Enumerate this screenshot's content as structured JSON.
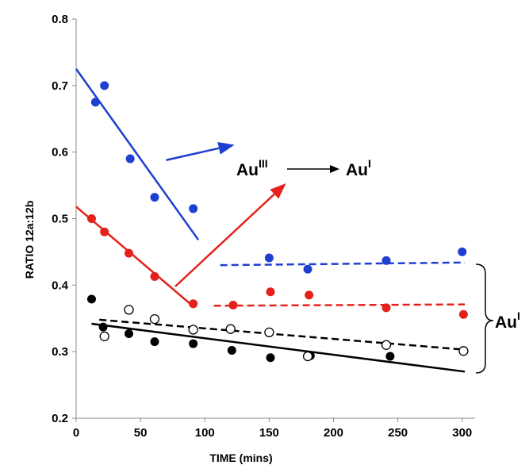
{
  "chart_data": {
    "type": "scatter",
    "title": "",
    "xlabel": "TIME (mins)",
    "ylabel": "RATIO 12a:12b",
    "xlim": [
      0,
      310
    ],
    "ylim": [
      0.2,
      0.8
    ],
    "xticks": [
      0,
      50,
      100,
      150,
      200,
      250,
      300
    ],
    "yticks": [
      0.2,
      0.3,
      0.4,
      0.5,
      0.6,
      0.7,
      0.8
    ],
    "grid": false,
    "legend": "none",
    "series": [
      {
        "color": "#1f3fd1",
        "marker": "filled",
        "points": [
          [
            15,
            0.675
          ],
          [
            22,
            0.7
          ],
          [
            42,
            0.59
          ],
          [
            61,
            0.532
          ],
          [
            91,
            0.515
          ],
          [
            150,
            0.441
          ],
          [
            180,
            0.424
          ],
          [
            241,
            0.437
          ],
          [
            300,
            0.45
          ]
        ],
        "fits": [
          {
            "style": "solid",
            "from": [
              0,
              0.725
            ],
            "to": [
              95,
              0.468
            ]
          },
          {
            "style": "dashed",
            "from": [
              112,
              0.43
            ],
            "to": [
              302,
              0.434
            ]
          }
        ]
      },
      {
        "color": "#e5211b",
        "marker": "filled",
        "points": [
          [
            12,
            0.5
          ],
          [
            22,
            0.48
          ],
          [
            41,
            0.448
          ],
          [
            61,
            0.413
          ],
          [
            91,
            0.372
          ],
          [
            122,
            0.37
          ],
          [
            151,
            0.39
          ],
          [
            181,
            0.385
          ],
          [
            241,
            0.366
          ],
          [
            301,
            0.356
          ]
        ],
        "fits": [
          {
            "style": "solid",
            "from": [
              0,
              0.518
            ],
            "to": [
              91,
              0.368
            ]
          },
          {
            "style": "dashed",
            "from": [
              107,
              0.369
            ],
            "to": [
              302,
              0.371
            ]
          }
        ]
      },
      {
        "color": "#000000",
        "marker": "filled",
        "points": [
          [
            12,
            0.379
          ],
          [
            21,
            0.337
          ],
          [
            41,
            0.327
          ],
          [
            61,
            0.315
          ],
          [
            91,
            0.312
          ],
          [
            121,
            0.302
          ],
          [
            151,
            0.291
          ],
          [
            182,
            0.294
          ],
          [
            244,
            0.293
          ]
        ],
        "fits": [
          {
            "style": "solid",
            "from": [
              12,
              0.342
            ],
            "to": [
              302,
              0.27
            ]
          }
        ]
      },
      {
        "color": "#000000",
        "marker": "open",
        "points": [
          [
            22,
            0.323
          ],
          [
            41,
            0.363
          ],
          [
            61,
            0.349
          ],
          [
            91,
            0.333
          ],
          [
            120,
            0.334
          ],
          [
            150,
            0.329
          ],
          [
            180,
            0.293
          ],
          [
            241,
            0.31
          ],
          [
            301,
            0.301
          ]
        ],
        "fits": [
          {
            "style": "dashed",
            "from": [
              18,
              0.348
            ],
            "to": [
              302,
              0.303
            ]
          }
        ]
      }
    ],
    "annotations": {
      "reaction": {
        "from_base": "Au",
        "from_sup": "III",
        "to_base": "Au",
        "to_sup": "I"
      },
      "bracket": {
        "base": "Au",
        "sup": "I"
      },
      "arrows": [
        {
          "color": "#1f3fd1",
          "from": [
            70,
            0.588
          ],
          "to": [
            123,
            0.611
          ]
        },
        {
          "color": "#e5211b",
          "from": [
            77,
            0.398
          ],
          "to": [
            163,
            0.553
          ]
        }
      ]
    }
  }
}
